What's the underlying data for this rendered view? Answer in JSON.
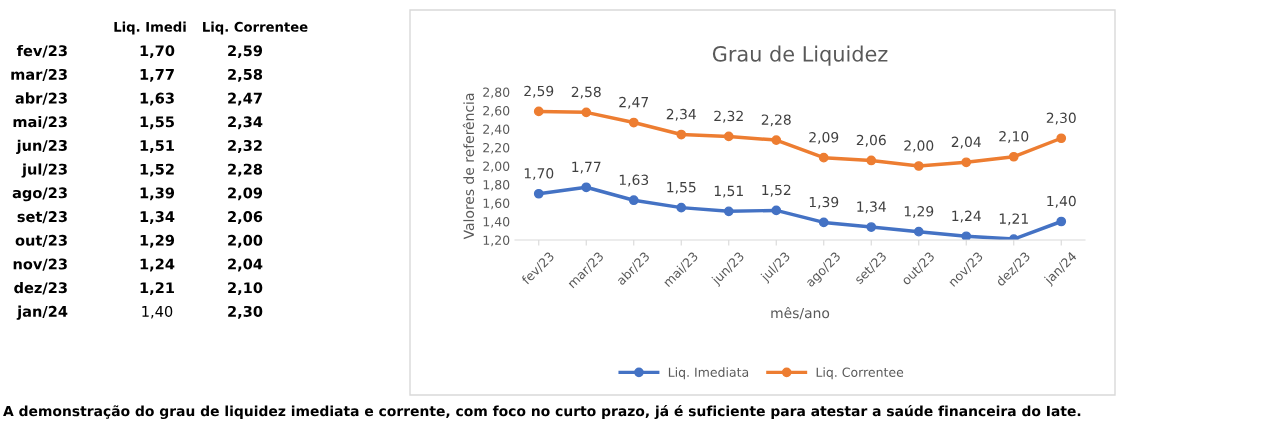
{
  "chart_data": {
    "type": "line",
    "title": "Grau de Liquidez",
    "xlabel": "mês/ano",
    "ylabel": "Valores de referência",
    "categories": [
      "fev/23",
      "mar/23",
      "abr/23",
      "mai/23",
      "jun/23",
      "jul/23",
      "ago/23",
      "set/23",
      "out/23",
      "nov/23",
      "dez/23",
      "jan/24"
    ],
    "series": [
      {
        "name": "Liq. Imediata",
        "color": "#4472c4",
        "values": [
          1.7,
          1.77,
          1.63,
          1.55,
          1.51,
          1.52,
          1.39,
          1.34,
          1.29,
          1.24,
          1.21,
          1.4
        ],
        "value_labels": [
          "1,70",
          "1,77",
          "1,63",
          "1,55",
          "1,51",
          "1,52",
          "1,39",
          "1,34",
          "1,29",
          "1,24",
          "1,21",
          "1,40"
        ]
      },
      {
        "name": "Liq. Correntee",
        "color": "#ed7d31",
        "values": [
          2.59,
          2.58,
          2.47,
          2.34,
          2.32,
          2.28,
          2.09,
          2.06,
          2.0,
          2.04,
          2.1,
          2.3
        ],
        "value_labels": [
          "2,59",
          "2,58",
          "2,47",
          "2,34",
          "2,32",
          "2,28",
          "2,09",
          "2,06",
          "2,00",
          "2,04",
          "2,10",
          "2,30"
        ]
      }
    ],
    "ylim": [
      1.2,
      2.8
    ],
    "yticks": [
      {
        "value": 1.2,
        "label": "1,20"
      },
      {
        "value": 1.4,
        "label": "1,40"
      },
      {
        "value": 1.6,
        "label": "1,60"
      },
      {
        "value": 1.8,
        "label": "1,80"
      },
      {
        "value": 2.0,
        "label": "2,00"
      },
      {
        "value": 2.2,
        "label": "2,20"
      },
      {
        "value": 2.4,
        "label": "2,40"
      },
      {
        "value": 2.6,
        "label": "2,60"
      },
      {
        "value": 2.8,
        "label": "2,80"
      }
    ],
    "grid": false,
    "legend": "bottom",
    "marker": "circle",
    "line_style": "solid",
    "annotations": [
      "Liq. Imedi",
      "Liq. Correntee",
      "A demonstração do grau de liquidez imediata e corrente, com foco no curto prazo, já é suficiente para atestar a saúde financeira do Iate."
    ]
  }
}
